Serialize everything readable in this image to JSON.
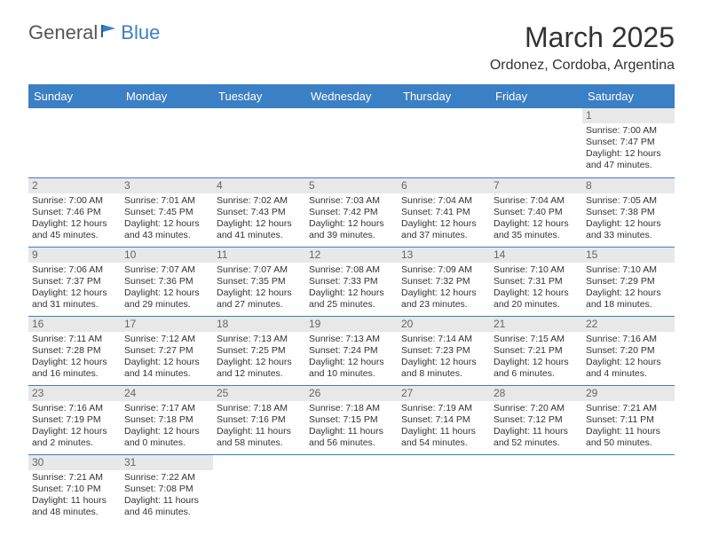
{
  "logo": {
    "text1": "General",
    "text2": "Blue"
  },
  "title": "March 2025",
  "location": "Ordonez, Cordoba, Argentina",
  "weekdays": [
    "Sunday",
    "Monday",
    "Tuesday",
    "Wednesday",
    "Thursday",
    "Friday",
    "Saturday"
  ],
  "header_bg": "#3b7fc4",
  "days": [
    null,
    null,
    null,
    null,
    null,
    null,
    {
      "n": "1",
      "sr": "Sunrise: 7:00 AM",
      "ss": "Sunset: 7:47 PM",
      "d1": "Daylight: 12 hours",
      "d2": "and 47 minutes."
    },
    {
      "n": "2",
      "sr": "Sunrise: 7:00 AM",
      "ss": "Sunset: 7:46 PM",
      "d1": "Daylight: 12 hours",
      "d2": "and 45 minutes."
    },
    {
      "n": "3",
      "sr": "Sunrise: 7:01 AM",
      "ss": "Sunset: 7:45 PM",
      "d1": "Daylight: 12 hours",
      "d2": "and 43 minutes."
    },
    {
      "n": "4",
      "sr": "Sunrise: 7:02 AM",
      "ss": "Sunset: 7:43 PM",
      "d1": "Daylight: 12 hours",
      "d2": "and 41 minutes."
    },
    {
      "n": "5",
      "sr": "Sunrise: 7:03 AM",
      "ss": "Sunset: 7:42 PM",
      "d1": "Daylight: 12 hours",
      "d2": "and 39 minutes."
    },
    {
      "n": "6",
      "sr": "Sunrise: 7:04 AM",
      "ss": "Sunset: 7:41 PM",
      "d1": "Daylight: 12 hours",
      "d2": "and 37 minutes."
    },
    {
      "n": "7",
      "sr": "Sunrise: 7:04 AM",
      "ss": "Sunset: 7:40 PM",
      "d1": "Daylight: 12 hours",
      "d2": "and 35 minutes."
    },
    {
      "n": "8",
      "sr": "Sunrise: 7:05 AM",
      "ss": "Sunset: 7:38 PM",
      "d1": "Daylight: 12 hours",
      "d2": "and 33 minutes."
    },
    {
      "n": "9",
      "sr": "Sunrise: 7:06 AM",
      "ss": "Sunset: 7:37 PM",
      "d1": "Daylight: 12 hours",
      "d2": "and 31 minutes."
    },
    {
      "n": "10",
      "sr": "Sunrise: 7:07 AM",
      "ss": "Sunset: 7:36 PM",
      "d1": "Daylight: 12 hours",
      "d2": "and 29 minutes."
    },
    {
      "n": "11",
      "sr": "Sunrise: 7:07 AM",
      "ss": "Sunset: 7:35 PM",
      "d1": "Daylight: 12 hours",
      "d2": "and 27 minutes."
    },
    {
      "n": "12",
      "sr": "Sunrise: 7:08 AM",
      "ss": "Sunset: 7:33 PM",
      "d1": "Daylight: 12 hours",
      "d2": "and 25 minutes."
    },
    {
      "n": "13",
      "sr": "Sunrise: 7:09 AM",
      "ss": "Sunset: 7:32 PM",
      "d1": "Daylight: 12 hours",
      "d2": "and 23 minutes."
    },
    {
      "n": "14",
      "sr": "Sunrise: 7:10 AM",
      "ss": "Sunset: 7:31 PM",
      "d1": "Daylight: 12 hours",
      "d2": "and 20 minutes."
    },
    {
      "n": "15",
      "sr": "Sunrise: 7:10 AM",
      "ss": "Sunset: 7:29 PM",
      "d1": "Daylight: 12 hours",
      "d2": "and 18 minutes."
    },
    {
      "n": "16",
      "sr": "Sunrise: 7:11 AM",
      "ss": "Sunset: 7:28 PM",
      "d1": "Daylight: 12 hours",
      "d2": "and 16 minutes."
    },
    {
      "n": "17",
      "sr": "Sunrise: 7:12 AM",
      "ss": "Sunset: 7:27 PM",
      "d1": "Daylight: 12 hours",
      "d2": "and 14 minutes."
    },
    {
      "n": "18",
      "sr": "Sunrise: 7:13 AM",
      "ss": "Sunset: 7:25 PM",
      "d1": "Daylight: 12 hours",
      "d2": "and 12 minutes."
    },
    {
      "n": "19",
      "sr": "Sunrise: 7:13 AM",
      "ss": "Sunset: 7:24 PM",
      "d1": "Daylight: 12 hours",
      "d2": "and 10 minutes."
    },
    {
      "n": "20",
      "sr": "Sunrise: 7:14 AM",
      "ss": "Sunset: 7:23 PM",
      "d1": "Daylight: 12 hours",
      "d2": "and 8 minutes."
    },
    {
      "n": "21",
      "sr": "Sunrise: 7:15 AM",
      "ss": "Sunset: 7:21 PM",
      "d1": "Daylight: 12 hours",
      "d2": "and 6 minutes."
    },
    {
      "n": "22",
      "sr": "Sunrise: 7:16 AM",
      "ss": "Sunset: 7:20 PM",
      "d1": "Daylight: 12 hours",
      "d2": "and 4 minutes."
    },
    {
      "n": "23",
      "sr": "Sunrise: 7:16 AM",
      "ss": "Sunset: 7:19 PM",
      "d1": "Daylight: 12 hours",
      "d2": "and 2 minutes."
    },
    {
      "n": "24",
      "sr": "Sunrise: 7:17 AM",
      "ss": "Sunset: 7:18 PM",
      "d1": "Daylight: 12 hours",
      "d2": "and 0 minutes."
    },
    {
      "n": "25",
      "sr": "Sunrise: 7:18 AM",
      "ss": "Sunset: 7:16 PM",
      "d1": "Daylight: 11 hours",
      "d2": "and 58 minutes."
    },
    {
      "n": "26",
      "sr": "Sunrise: 7:18 AM",
      "ss": "Sunset: 7:15 PM",
      "d1": "Daylight: 11 hours",
      "d2": "and 56 minutes."
    },
    {
      "n": "27",
      "sr": "Sunrise: 7:19 AM",
      "ss": "Sunset: 7:14 PM",
      "d1": "Daylight: 11 hours",
      "d2": "and 54 minutes."
    },
    {
      "n": "28",
      "sr": "Sunrise: 7:20 AM",
      "ss": "Sunset: 7:12 PM",
      "d1": "Daylight: 11 hours",
      "d2": "and 52 minutes."
    },
    {
      "n": "29",
      "sr": "Sunrise: 7:21 AM",
      "ss": "Sunset: 7:11 PM",
      "d1": "Daylight: 11 hours",
      "d2": "and 50 minutes."
    },
    {
      "n": "30",
      "sr": "Sunrise: 7:21 AM",
      "ss": "Sunset: 7:10 PM",
      "d1": "Daylight: 11 hours",
      "d2": "and 48 minutes."
    },
    {
      "n": "31",
      "sr": "Sunrise: 7:22 AM",
      "ss": "Sunset: 7:08 PM",
      "d1": "Daylight: 11 hours",
      "d2": "and 46 minutes."
    },
    null,
    null,
    null,
    null,
    null
  ]
}
